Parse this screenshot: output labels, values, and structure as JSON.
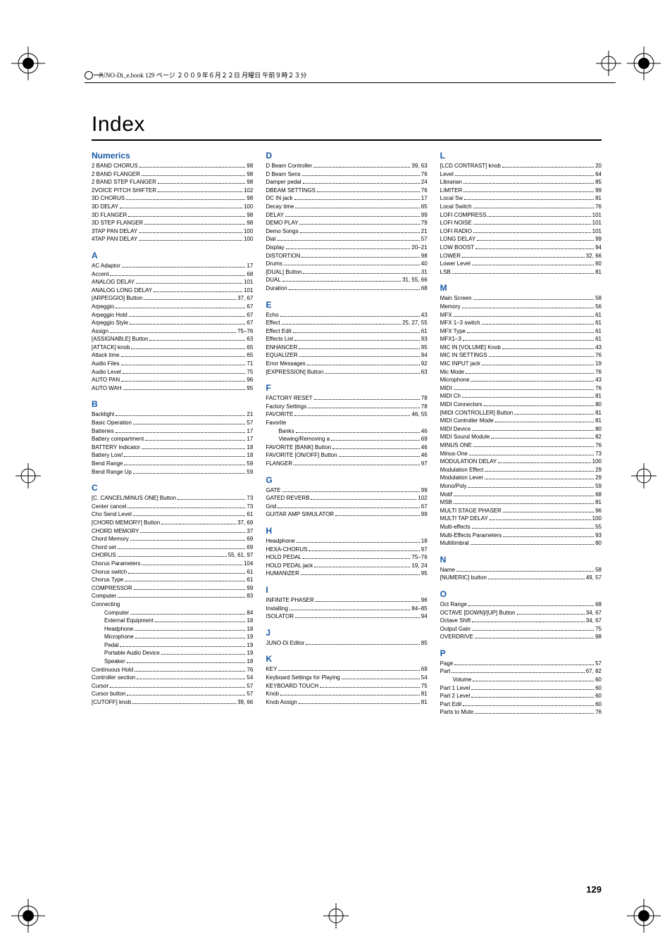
{
  "meta": {
    "header_text": "JUNO-Di_e.book 129 ページ ２００９年６月２２日  月曜日  午前９時２３分",
    "title": "Index",
    "page_number": "129",
    "accent_color": "#1658a6"
  },
  "index": {
    "col1": [
      {
        "head": "Numerics",
        "entries": [
          {
            "l": "2 BAND CHORUS",
            "p": "98"
          },
          {
            "l": "2 BAND FLANGER",
            "p": "98"
          },
          {
            "l": "2 BAND STEP FLANGER",
            "p": "98"
          },
          {
            "l": "2VOICE PITCH SHIFTER",
            "p": "102"
          },
          {
            "l": "3D CHORUS",
            "p": "98"
          },
          {
            "l": "3D DELAY",
            "p": "100"
          },
          {
            "l": "3D FLANGER",
            "p": "98"
          },
          {
            "l": "3D STEP FLANGER",
            "p": "98"
          },
          {
            "l": "3TAP PAN DELAY",
            "p": "100"
          },
          {
            "l": "4TAP PAN DELAY",
            "p": "100"
          }
        ]
      },
      {
        "head": "A",
        "entries": [
          {
            "l": "AC Adaptor",
            "p": "17"
          },
          {
            "l": "Accent",
            "p": "68"
          },
          {
            "l": "ANALOG DELAY",
            "p": "101"
          },
          {
            "l": "ANALOG LONG DELAY",
            "p": "101"
          },
          {
            "l": "[ARPEGGIO] Button",
            "p": "37, 67"
          },
          {
            "l": "Arpeggio",
            "p": "67"
          },
          {
            "l": "Arpeggio Hold",
            "p": "67"
          },
          {
            "l": "Arpeggio Style",
            "p": "67"
          },
          {
            "l": "Assign",
            "p": "75–76"
          },
          {
            "l": "[ASSIGNABLE] Button",
            "p": "63"
          },
          {
            "l": "[ATTACK] knob",
            "p": "65"
          },
          {
            "l": "Attack time",
            "p": "65"
          },
          {
            "l": "Audio Files",
            "p": "71"
          },
          {
            "l": "Audio Level",
            "p": "75"
          },
          {
            "l": "AUTO PAN",
            "p": "96"
          },
          {
            "l": "AUTO WAH",
            "p": "95"
          }
        ]
      },
      {
        "head": "B",
        "entries": [
          {
            "l": "Backlight",
            "p": "21"
          },
          {
            "l": "Basic Operation",
            "p": "57"
          },
          {
            "l": "Batteries",
            "p": "17"
          },
          {
            "l": "Battery compartment",
            "p": "17"
          },
          {
            "l": "BATTERY Indicator",
            "p": "18"
          },
          {
            "l": "Battery Low!",
            "p": "18"
          },
          {
            "l": "Bend Range",
            "p": "59"
          },
          {
            "l": "Bend Range Up",
            "p": "59"
          }
        ]
      },
      {
        "head": "C",
        "entries": [
          {
            "l": "[C. CANCEL/MINUS ONE] Button",
            "p": "73"
          },
          {
            "l": "Center cancel",
            "p": "73"
          },
          {
            "l": "Cho Send Level",
            "p": "61"
          },
          {
            "l": "[CHORD MEMORY] Button",
            "p": "37, 69"
          },
          {
            "l": "CHORD MEMORY",
            "p": "37"
          },
          {
            "l": "Chord Memory",
            "p": "69"
          },
          {
            "l": "Chord set",
            "p": "69"
          },
          {
            "l": "CHORUS",
            "p": "55, 61, 97"
          },
          {
            "l": "Chorus Parameters",
            "p": "104"
          },
          {
            "l": "Chorus switch",
            "p": "61"
          },
          {
            "l": "Chorus Type",
            "p": "61"
          },
          {
            "l": "COMPRESSOR",
            "p": "99"
          },
          {
            "l": "Computer",
            "p": "83"
          },
          {
            "l": "Connecting",
            "plain": true
          },
          {
            "l": "Computer",
            "p": "84",
            "indent": 1
          },
          {
            "l": "External Equipment",
            "p": "18",
            "indent": 1
          },
          {
            "l": "Headphone",
            "p": "18",
            "indent": 1
          },
          {
            "l": "Microphone",
            "p": "19",
            "indent": 1
          },
          {
            "l": "Pedal",
            "p": "19",
            "indent": 1
          },
          {
            "l": "Portable Audio Device",
            "p": "19",
            "indent": 1
          },
          {
            "l": "Speaker",
            "p": "18",
            "indent": 1
          },
          {
            "l": "Continuous Hold",
            "p": "76"
          },
          {
            "l": "Controller section",
            "p": "54"
          },
          {
            "l": "Cursor",
            "p": "57"
          },
          {
            "l": "Cursor button",
            "p": "57"
          },
          {
            "l": "[CUTOFF] knob",
            "p": "39, 66"
          }
        ]
      }
    ],
    "col2": [
      {
        "head": "D",
        "entries": [
          {
            "l": "D Beam Controller",
            "p": "39, 63"
          },
          {
            "l": "D Beam Sens",
            "p": "76"
          },
          {
            "l": "Damper pedal",
            "p": "24"
          },
          {
            "l": "DBEAM SETTINGS",
            "p": "76"
          },
          {
            "l": "DC IN jack",
            "p": "17"
          },
          {
            "l": "Decay time",
            "p": "65"
          },
          {
            "l": "DELAY",
            "p": "99"
          },
          {
            "l": "DEMO PLAY",
            "p": "79"
          },
          {
            "l": "Demo Songs",
            "p": "21"
          },
          {
            "l": "Dial",
            "p": "57"
          },
          {
            "l": "Display",
            "p": "20–21"
          },
          {
            "l": "DISTORTION",
            "p": "98"
          },
          {
            "l": "Drums",
            "p": "40"
          },
          {
            "l": "[DUAL] Button",
            "p": "31"
          },
          {
            "l": "DUAL",
            "p": "31, 55, 66"
          },
          {
            "l": "Duration",
            "p": "68"
          }
        ]
      },
      {
        "head": "E",
        "entries": [
          {
            "l": "Echo",
            "p": "43"
          },
          {
            "l": "Effect",
            "p": "25, 27, 55"
          },
          {
            "l": "Effect Edit",
            "p": "61"
          },
          {
            "l": "Effects List",
            "p": "93"
          },
          {
            "l": "ENHANCER",
            "p": "95"
          },
          {
            "l": "EQUALIZER",
            "p": "94"
          },
          {
            "l": "Error Messages",
            "p": "92"
          },
          {
            "l": "[EXPRESSION] Button",
            "p": "63"
          }
        ]
      },
      {
        "head": "F",
        "entries": [
          {
            "l": "FACTORY RESET",
            "p": "78"
          },
          {
            "l": "Factory Settings",
            "p": "78"
          },
          {
            "l": "FAVORITE",
            "p": "46, 55"
          },
          {
            "l": "Favorite",
            "plain": true
          },
          {
            "l": "Banks",
            "p": "46",
            "indent": 1
          },
          {
            "l": "Viewing/Removing a",
            "p": "69",
            "indent": 1
          },
          {
            "l": "FAVORITE [BANK] Button",
            "p": "46"
          },
          {
            "l": "FAVORITE [ON/OFF] Button",
            "p": "46"
          },
          {
            "l": "FLANGER",
            "p": "97"
          }
        ]
      },
      {
        "head": "G",
        "entries": [
          {
            "l": "GATE",
            "p": "99"
          },
          {
            "l": "GATED REVERB",
            "p": "102"
          },
          {
            "l": "Grid",
            "p": "67"
          },
          {
            "l": "GUITAR AMP SIMULATOR",
            "p": "99"
          }
        ]
      },
      {
        "head": "H",
        "entries": [
          {
            "l": "Headphone",
            "p": "18"
          },
          {
            "l": "HEXA-CHORUS",
            "p": "97"
          },
          {
            "l": "HOLD PEDAL",
            "p": "75–76"
          },
          {
            "l": "HOLD PEDAL jack",
            "p": "19, 24"
          },
          {
            "l": "HUMANIZER",
            "p": "95"
          }
        ]
      },
      {
        "head": "I",
        "entries": [
          {
            "l": "INFINITE PHASER",
            "p": "96"
          },
          {
            "l": "Installing",
            "p": "84–85"
          },
          {
            "l": "ISOLATOR",
            "p": "94"
          }
        ]
      },
      {
        "head": "J",
        "entries": [
          {
            "l": "JUNO-Di Editor",
            "p": "85"
          }
        ]
      },
      {
        "head": "K",
        "entries": [
          {
            "l": "KEY",
            "p": "69"
          },
          {
            "l": "Keyboard Settings for Playing",
            "p": "54"
          },
          {
            "l": "KEYBOARD TOUCH",
            "p": "75"
          },
          {
            "l": "Knob",
            "p": "81"
          },
          {
            "l": "Knob Assign",
            "p": "81"
          }
        ]
      }
    ],
    "col3": [
      {
        "head": "L",
        "entries": [
          {
            "l": "[LCD CONTRAST] knob",
            "p": "20"
          },
          {
            "l": "Level",
            "p": "64"
          },
          {
            "l": "Librarian",
            "p": "85"
          },
          {
            "l": "LIMITER",
            "p": "99"
          },
          {
            "l": "Local Sw",
            "p": "81"
          },
          {
            "l": "Local Switch",
            "p": "76"
          },
          {
            "l": "LOFI COMPRESS",
            "p": "101"
          },
          {
            "l": "LOFI NOISE",
            "p": "101"
          },
          {
            "l": "LOFI RADIO",
            "p": "101"
          },
          {
            "l": "LONG DELAY",
            "p": "99"
          },
          {
            "l": "LOW BOOST",
            "p": "94"
          },
          {
            "l": "LOWER",
            "p": "32, 66"
          },
          {
            "l": "Lower Level",
            "p": "60"
          },
          {
            "l": "LSB",
            "p": "81"
          }
        ]
      },
      {
        "head": "M",
        "entries": [
          {
            "l": "Main Screen",
            "p": "58"
          },
          {
            "l": "Memory",
            "p": "56"
          },
          {
            "l": "MFX",
            "p": "61"
          },
          {
            "l": "MFX 1–3 switch",
            "p": "61"
          },
          {
            "l": "MFX Type",
            "p": "61"
          },
          {
            "l": "MFX1–3",
            "p": "61"
          },
          {
            "l": "MIC IN [VOLUME] Knob",
            "p": "43"
          },
          {
            "l": "MIC IN SETTINGS",
            "p": "76"
          },
          {
            "l": "MIC INPUT jack",
            "p": "19"
          },
          {
            "l": "Mic Mode",
            "p": "76"
          },
          {
            "l": "Microphone",
            "p": "43"
          },
          {
            "l": "MIDI",
            "p": "76"
          },
          {
            "l": "MIDI Ch",
            "p": "81"
          },
          {
            "l": "MIDI Connectors",
            "p": "80"
          },
          {
            "l": "[MIDI CONTROLLER] Button",
            "p": "81"
          },
          {
            "l": "MIDI Controller Mode",
            "p": "81"
          },
          {
            "l": "MIDI Device",
            "p": "80"
          },
          {
            "l": "MIDI Sound Module",
            "p": "82"
          },
          {
            "l": "MINUS ONE",
            "p": "76"
          },
          {
            "l": "Minus-One",
            "p": "73"
          },
          {
            "l": "MODULATION DELAY",
            "p": "100"
          },
          {
            "l": "Modulation Effect",
            "p": "29"
          },
          {
            "l": "Modulation Lever",
            "p": "29"
          },
          {
            "l": "Mono/Poly",
            "p": "59"
          },
          {
            "l": "Motif",
            "p": "68"
          },
          {
            "l": "MSB",
            "p": "81"
          },
          {
            "l": "MULTI STAGE PHASER",
            "p": "96"
          },
          {
            "l": "MULTI TAP DELAY",
            "p": "100"
          },
          {
            "l": "Multi-effects",
            "p": "55"
          },
          {
            "l": "Multi-Effects Parameters",
            "p": "93"
          },
          {
            "l": "Multitimbral",
            "p": "80"
          }
        ]
      },
      {
        "head": "N",
        "entries": [
          {
            "l": "Name",
            "p": "58"
          },
          {
            "l": "[NUMERIC] button",
            "p": "49, 57"
          }
        ]
      },
      {
        "head": "O",
        "entries": [
          {
            "l": "Oct Range",
            "p": "68"
          },
          {
            "l": "OCTAVE [DOWN]/[UP] Button",
            "p": "34, 67"
          },
          {
            "l": "Octave Shift",
            "p": "34, 67"
          },
          {
            "l": "Output Gain",
            "p": "75"
          },
          {
            "l": "OVERDRIVE",
            "p": "98"
          }
        ]
      },
      {
        "head": "P",
        "entries": [
          {
            "l": "Page",
            "p": "57"
          },
          {
            "l": "Part",
            "p": "67, 82"
          },
          {
            "l": "Volume",
            "p": "60",
            "indent": 1
          },
          {
            "l": "Part 1 Level",
            "p": "60"
          },
          {
            "l": "Part 2 Level",
            "p": "60"
          },
          {
            "l": "Part Edit",
            "p": "60"
          },
          {
            "l": "Parts to Mute",
            "p": "76"
          }
        ]
      }
    ]
  }
}
